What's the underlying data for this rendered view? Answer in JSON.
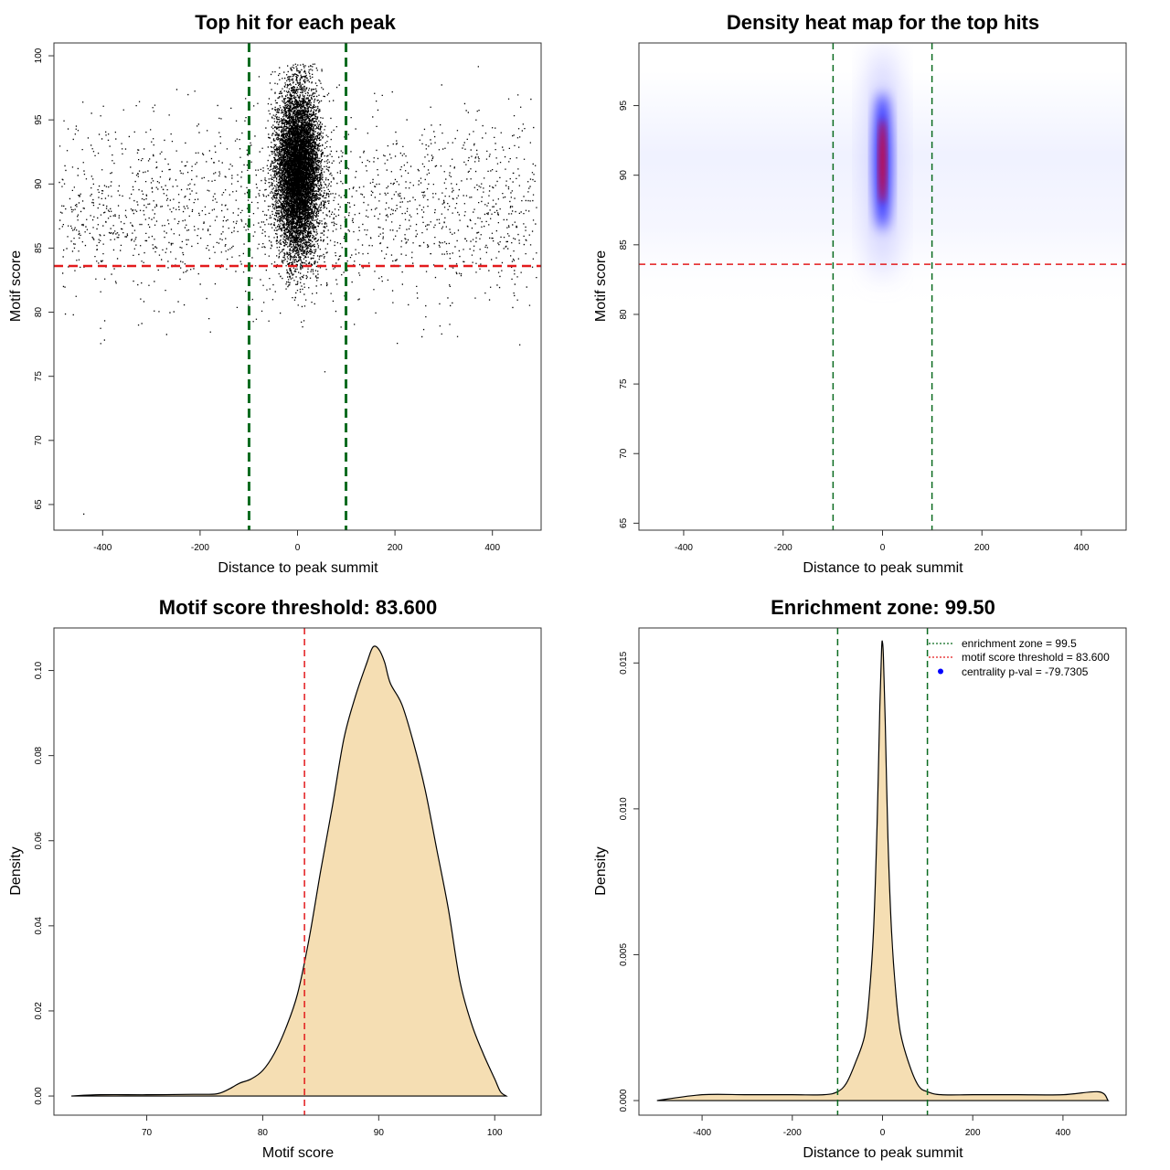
{
  "colors": {
    "threshold": "#e31a1c",
    "zone": "#0a6b1f",
    "fill": "#f5deb3",
    "points": "#000000",
    "heat_low": "#ffffff",
    "heat_mid": "#0000ff",
    "heat_high": "#ff0000",
    "legend_dot": "#0000ff"
  },
  "chart_data": [
    {
      "id": "scatter",
      "type": "scatter",
      "title": "Top hit for each peak",
      "xlabel": "Distance to peak summit",
      "ylabel": "Motif score",
      "xlim": [
        -500,
        500
      ],
      "ylim": [
        63,
        101
      ],
      "xticks": [
        -400,
        -200,
        0,
        200,
        400
      ],
      "yticks": [
        65,
        70,
        75,
        80,
        85,
        90,
        95,
        100
      ],
      "threshold_y": 83.6,
      "zone_x": [
        -99.5,
        99.5
      ],
      "central_cluster": {
        "x_center": 0,
        "x_sd": 22,
        "y_center": 91,
        "y_sd": 3.2,
        "count": 9000
      },
      "background": {
        "x_range": [
          -490,
          490
        ],
        "y_center": 88,
        "y_sd": 3.6,
        "count": 1900
      },
      "outliers": [
        {
          "x": -440,
          "y": 64.3
        },
        {
          "x": 55,
          "y": 75.4
        },
        {
          "x": 370,
          "y": 99.2
        },
        {
          "x": 455,
          "y": 77.5
        },
        {
          "x": -405,
          "y": 77.6
        },
        {
          "x": -180,
          "y": 78.5
        }
      ]
    },
    {
      "id": "heatmap",
      "type": "heatmap",
      "title": "Density heat map for the top hits",
      "xlabel": "Distance to peak summit",
      "ylabel": "Motif score",
      "xlim": [
        -490,
        490
      ],
      "ylim": [
        64.5,
        99.5
      ],
      "xticks": [
        -400,
        -200,
        0,
        200,
        400
      ],
      "yticks": [
        65,
        70,
        75,
        80,
        85,
        90,
        95
      ],
      "threshold_y": 83.6,
      "zone_x": [
        -99.5,
        99.5
      ],
      "density_center": {
        "x": 0,
        "y": 91
      },
      "density_spread": {
        "x_sd": 18,
        "y_sd": 3.2
      }
    },
    {
      "id": "score_density",
      "type": "area",
      "title": "Motif score threshold: 83.600",
      "xlabel": "Motif score",
      "ylabel": "Density",
      "xlim": [
        62,
        104
      ],
      "ylim": [
        -0.0045,
        0.11
      ],
      "xticks": [
        70,
        80,
        90,
        100
      ],
      "yticks": [
        0.0,
        0.02,
        0.04,
        0.06,
        0.08,
        0.1
      ],
      "ytick_labels": [
        "0.00",
        "0.02",
        "0.04",
        "0.06",
        "0.08",
        "0.10"
      ],
      "threshold_x": 83.6,
      "x": [
        63.5,
        66,
        70,
        74,
        76,
        77,
        78,
        79,
        80,
        81,
        82,
        83,
        84,
        85,
        86,
        87,
        88,
        89,
        89.5,
        90,
        90.5,
        91,
        92,
        93,
        94,
        95,
        96,
        97,
        98,
        99,
        100,
        100.5,
        101
      ],
      "y": [
        0.0,
        0.0003,
        0.0003,
        0.0004,
        0.0005,
        0.0015,
        0.003,
        0.004,
        0.006,
        0.01,
        0.016,
        0.024,
        0.037,
        0.053,
        0.068,
        0.084,
        0.094,
        0.102,
        0.1055,
        0.105,
        0.102,
        0.097,
        0.092,
        0.083,
        0.072,
        0.058,
        0.044,
        0.027,
        0.017,
        0.01,
        0.004,
        0.001,
        0.0
      ]
    },
    {
      "id": "distance_density",
      "type": "area",
      "title": "Enrichment zone: 99.50",
      "xlabel": "Distance to peak summit",
      "ylabel": "Density",
      "xlim": [
        -540,
        540
      ],
      "ylim": [
        -0.0005,
        0.0162
      ],
      "xticks": [
        -400,
        -200,
        0,
        200,
        400
      ],
      "yticks": [
        0.0,
        0.005,
        0.01,
        0.015
      ],
      "ytick_labels": [
        "0.000",
        "0.005",
        "0.010",
        "0.015"
      ],
      "zone_x": [
        -99.5,
        99.5
      ],
      "x": [
        -500,
        -400,
        -300,
        -200,
        -130,
        -100,
        -80,
        -60,
        -40,
        -30,
        -20,
        -12,
        -6,
        -2,
        0,
        2,
        6,
        12,
        20,
        30,
        40,
        60,
        80,
        100,
        130,
        200,
        300,
        400,
        480,
        500
      ],
      "y": [
        0.0,
        0.0002,
        0.0002,
        0.0002,
        0.0002,
        0.0003,
        0.0006,
        0.0013,
        0.0022,
        0.0035,
        0.0058,
        0.0095,
        0.0135,
        0.0155,
        0.0157,
        0.0152,
        0.013,
        0.009,
        0.0058,
        0.0036,
        0.0023,
        0.0012,
        0.0005,
        0.0003,
        0.0002,
        0.0002,
        0.0002,
        0.0002,
        0.0003,
        0.0
      ],
      "legend": [
        {
          "label": "enrichment zone = 99.5",
          "kind": "zone"
        },
        {
          "label": "motif score threshold = 83.600",
          "kind": "threshold"
        },
        {
          "label": "centrality p-val = -79.7305",
          "kind": "dot"
        }
      ]
    }
  ]
}
